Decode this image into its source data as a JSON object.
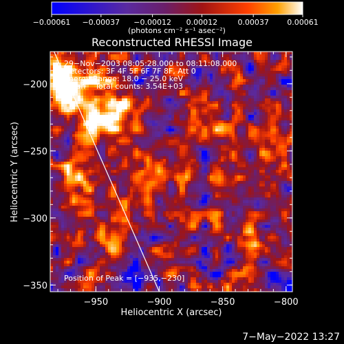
{
  "chart_data": {
    "type": "heatmap",
    "title": "Reconstructed RHESSI Image",
    "xlabel": "Heliocentric X (arcsec)",
    "ylabel": "Heliocentric Y (arcsec)",
    "xlim": [
      -986,
      -795
    ],
    "ylim": [
      -355,
      -176
    ],
    "x_ticks": [
      -950,
      -900,
      -850,
      -800
    ],
    "x_tick_labels": [
      "−950",
      "−900",
      "−850",
      "−800"
    ],
    "y_ticks": [
      -200,
      -250,
      -300,
      -350
    ],
    "y_tick_labels": [
      "−200",
      "−250",
      "−300",
      "−350"
    ],
    "colorbar": {
      "min": -0.00061,
      "max": 0.00061,
      "tick_values": [
        -0.00061,
        -0.00037,
        -0.00012,
        0.00012,
        0.00037,
        0.00061
      ],
      "tick_labels": [
        "−0.00061",
        "−0.00037",
        "−0.00012",
        "0.00012",
        "0.00037",
        "0.00061"
      ],
      "unit_label": "(photons cm⁻² s⁻¹ asec⁻²)",
      "colors": [
        "#0000ff",
        "#5a2aa0",
        "#6a1f6a",
        "#a01414",
        "#ff4000",
        "#ffa000",
        "#ffffff"
      ]
    },
    "annotations": [
      "29−Nov−2003 08:05:28.000 to 08:11:08.000",
      "Detectors: 3F 4F 5F 6F 7F 8F, Att 0",
      "Energy Range: 18.0 − 25.0 keV",
      "Clean    Total counts: 3.54E+03"
    ],
    "peak_label": "Position of Peak = [−935,−230]",
    "peak_position": [
      -935,
      -230
    ],
    "limb_line": [
      [
        -983,
        -176
      ],
      [
        -900,
        -355
      ]
    ],
    "hotspots": [
      {
        "x": -975,
        "y": -200,
        "amp": 1.0,
        "sx": 12,
        "sy": 16
      },
      {
        "x": -942,
        "y": -220,
        "amp": 1.0,
        "sx": 14,
        "sy": 16
      },
      {
        "x": -960,
        "y": -268,
        "amp": 0.55,
        "sx": 8,
        "sy": 14
      },
      {
        "x": -905,
        "y": -268,
        "amp": 0.55,
        "sx": 9,
        "sy": 12
      },
      {
        "x": -880,
        "y": -232,
        "amp": 0.45,
        "sx": 8,
        "sy": 9
      },
      {
        "x": -850,
        "y": -278,
        "amp": 0.5,
        "sx": 9,
        "sy": 12
      },
      {
        "x": -825,
        "y": -318,
        "amp": 0.45,
        "sx": 8,
        "sy": 9
      },
      {
        "x": -812,
        "y": -245,
        "amp": 0.45,
        "sx": 8,
        "sy": 14
      },
      {
        "x": -942,
        "y": -318,
        "amp": 0.4,
        "sx": 10,
        "sy": 10
      },
      {
        "x": -885,
        "y": -340,
        "amp": 0.35,
        "sx": 9,
        "sy": 8
      }
    ]
  },
  "footer": {
    "date": "7−May−2022 13:27"
  }
}
